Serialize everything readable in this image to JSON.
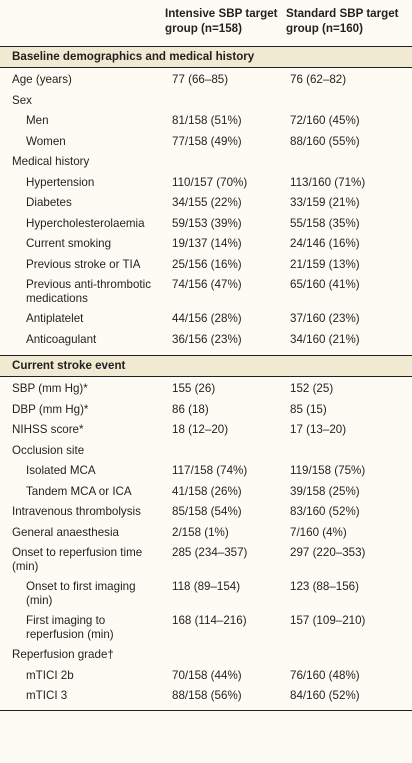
{
  "header": {
    "col1": "Intensive SBP target group (n=158)",
    "col1_l1": "Intensive SBP target",
    "col1_l2": "group (n=158)",
    "col2_l1": "Standard SBP target",
    "col2_l2": "group (n=160)"
  },
  "sections": [
    {
      "title": "Baseline demographics and medical history",
      "rows": [
        {
          "label": "Age (years)",
          "indent": false,
          "v1": "77 (66–85)",
          "v2": "76 (62–82)"
        },
        {
          "label": "Sex",
          "indent": false,
          "v1": "",
          "v2": ""
        },
        {
          "label": "Men",
          "indent": true,
          "v1": "81/158 (51%)",
          "v2": "72/160 (45%)"
        },
        {
          "label": "Women",
          "indent": true,
          "v1": "77/158 (49%)",
          "v2": "88/160 (55%)"
        },
        {
          "label": "Medical history",
          "indent": false,
          "v1": "",
          "v2": ""
        },
        {
          "label": "Hypertension",
          "indent": true,
          "v1": "110/157 (70%)",
          "v2": "113/160 (71%)"
        },
        {
          "label": "Diabetes",
          "indent": true,
          "v1": "34/155 (22%)",
          "v2": "33/159 (21%)"
        },
        {
          "label": "Hypercholesterolaemia",
          "indent": true,
          "v1": "59/153 (39%)",
          "v2": "55/158 (35%)"
        },
        {
          "label": "Current smoking",
          "indent": true,
          "v1": "19/137 (14%)",
          "v2": "24/146 (16%)"
        },
        {
          "label": "Previous stroke or TIA",
          "indent": true,
          "v1": "25/156 (16%)",
          "v2": "21/159 (13%)"
        },
        {
          "label": "Previous anti-thrombotic",
          "label2": "medications",
          "indent": true,
          "v1": "74/156 (47%)",
          "v2": "65/160 (41%)"
        },
        {
          "label": "Antiplatelet",
          "indent": true,
          "v1": "44/156 (28%)",
          "v2": "37/160 (23%)"
        },
        {
          "label": "Anticoagulant",
          "indent": true,
          "v1": "36/156 (23%)",
          "v2": "34/160 (21%)"
        }
      ]
    },
    {
      "title": "Current stroke event",
      "rows": [
        {
          "label": "SBP (mm Hg)*",
          "indent": false,
          "v1": "155 (26)",
          "v2": "152 (25)"
        },
        {
          "label": "DBP (mm Hg)*",
          "indent": false,
          "v1": "86 (18)",
          "v2": "85 (15)"
        },
        {
          "label": "NIHSS score*",
          "indent": false,
          "v1": "18 (12–20)",
          "v2": "17 (13–20)"
        },
        {
          "label": "Occlusion site",
          "indent": false,
          "v1": "",
          "v2": ""
        },
        {
          "label": "Isolated MCA",
          "indent": true,
          "v1": "117/158 (74%)",
          "v2": "119/158 (75%)"
        },
        {
          "label": "Tandem MCA or ICA",
          "indent": true,
          "v1": "41/158 (26%)",
          "v2": "39/158 (25%)"
        },
        {
          "label": "Intravenous thrombolysis",
          "indent": false,
          "v1": "85/158 (54%)",
          "v2": "83/160 (52%)"
        },
        {
          "label": "General anaesthesia",
          "indent": false,
          "v1": "2/158 (1%)",
          "v2": "7/160 (4%)"
        },
        {
          "label": "Onset to reperfusion time",
          "label2": "(min)",
          "indent": false,
          "v1": "285 (234–357)",
          "v2": "297 (220–353)"
        },
        {
          "label": "Onset to first imaging",
          "label2": "(min)",
          "indent": true,
          "v1": "118 (89–154)",
          "v2": "123 (88–156)"
        },
        {
          "label": "First imaging to",
          "label2": "reperfusion (min)",
          "indent": true,
          "v1": "168 (114–216)",
          "v2": "157 (109–210)"
        },
        {
          "label": "Reperfusion grade†",
          "indent": false,
          "v1": "",
          "v2": ""
        },
        {
          "label": "mTICI 2b",
          "indent": true,
          "v1": "70/158 (44%)",
          "v2": "76/160 (48%)"
        },
        {
          "label": "mTICI 3",
          "indent": true,
          "v1": "88/158 (56%)",
          "v2": "84/160 (52%)"
        }
      ]
    }
  ]
}
